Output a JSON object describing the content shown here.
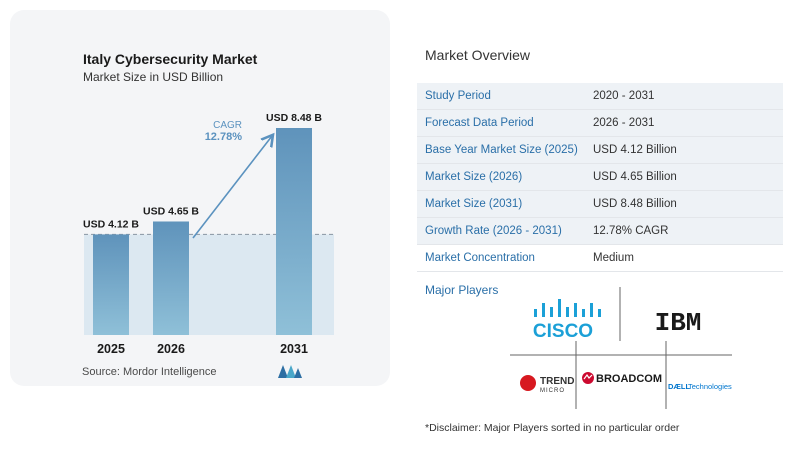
{
  "chart_data": {
    "type": "bar",
    "title": "Italy Cybersecurity Market",
    "subtitle": "Market Size in USD Billion",
    "categories": [
      "2025",
      "2026",
      "2031"
    ],
    "values": [
      4.12,
      4.65,
      8.48
    ],
    "data_labels": [
      "USD 4.12 B",
      "USD 4.65 B",
      "USD 8.48 B"
    ],
    "annotation": {
      "label": "CAGR",
      "value": "12.78%"
    },
    "ylim": [
      0,
      9
    ],
    "colors": {
      "bar": "#6a9ec4",
      "bar_top": "#5f93bb",
      "bar_bottom": "#8fc0d8",
      "shade": "#dce8f1",
      "arrow": "#5b92bf",
      "cagr": "#5b92bf"
    }
  },
  "source": "Source:  Mordor Intelligence",
  "overview": {
    "title": "Market Overview",
    "rows": [
      {
        "key": "Study Period",
        "value": "2020 - 2031"
      },
      {
        "key": "Forecast Data Period",
        "value": "2026 - 2031"
      },
      {
        "key": "Base Year Market Size (2025)",
        "value": "USD 4.12 Billion"
      },
      {
        "key": "Market Size (2026)",
        "value": "USD 4.65 Billion"
      },
      {
        "key": "Market Size (2031)",
        "value": "USD 8.48 Billion"
      },
      {
        "key": "Growth Rate (2026 - 2031)",
        "value": "12.78% CAGR"
      },
      {
        "key": "Market Concentration",
        "value": "Medium"
      }
    ]
  },
  "players": {
    "title": "Major Players",
    "logos": {
      "cisco": "CISCO",
      "ibm": "IBM",
      "trend_top": "TREND",
      "trend_bottom": "MICRO",
      "broadcom": "BROADCOM",
      "dell_a": "DÆLL",
      "dell_b": "Technologies"
    }
  },
  "disclaimer": "*Disclaimer: Major Players sorted in no particular order"
}
